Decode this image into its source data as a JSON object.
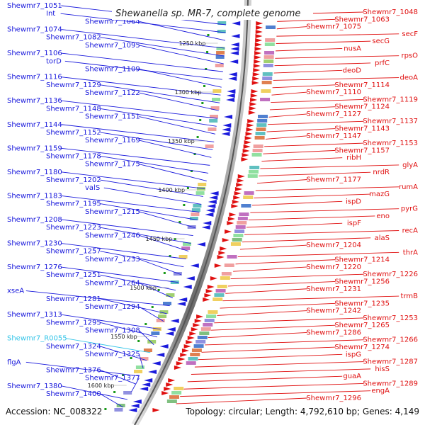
{
  "title": "Shewanella sp. MR-7, complete genome",
  "footer": {
    "accession": "Accession: NC_008322",
    "summary": "Topology: circular; Length: 4,792,610 bp; Genes: 4,149"
  },
  "colors": {
    "left_genes": "#1a1adc",
    "right_genes": "#e01010",
    "rna_gene": "#33c4e8",
    "kbp_marker": "#1a9a1a"
  },
  "kbp_markers": [
    "1250 kbp",
    "1300 kbp",
    "1350 kbp",
    "1400 kbp",
    "1450 kbp",
    "1500 kbp",
    "1550 kbp",
    "1600 kbp"
  ],
  "left_labels": [
    "Shewmr7_1051",
    "Int",
    "Shewmr7_1064",
    "Shewmr7_1074",
    "Shewmr7_1082",
    "Shewmr7_1095",
    "Shewmr7_1106",
    "torD",
    "Shewmr7_1109",
    "Shewmr7_1116",
    "Shewmr7_1129",
    "Shewmr7_1122",
    "Shewmr7_1136",
    "Shewmr7_1148",
    "Shewmr7_1151",
    "Shewmr7_1144",
    "Shewmr7_1152",
    "Shewmr7_1169",
    "Shewmr7_1159",
    "Shewmr7_1178",
    "Shewmr7_1175",
    "Shewmr7_1180",
    "Shewmr7_1202",
    "valS",
    "Shewmr7_1183",
    "Shewmr7_1195",
    "Shewmr7_1215",
    "Shewmr7_1208",
    "Shewmr7_1223",
    "Shewmr7_1246",
    "Shewmr7_1230",
    "Shewmr7_1257",
    "Shewmr7_1233",
    "Shewmr7_1276",
    "Shewmr7_1251",
    "Shewmr7_1264",
    "xseA",
    "Shewmr7_1281",
    "Shewmr7_1294",
    "Shewmr7_1313",
    "Shewmr7_1295",
    "Shewmr7_1308",
    "Shewmr7_R0055",
    "Shewmr7_1324",
    "Shewmr7_1325",
    "flgA",
    "Shewmr7_1376",
    "Shewmr7_1377",
    "Shewmr7_1380",
    "Shewmr7_1400"
  ],
  "right_labels": [
    "Shewmr7_1048",
    "Shewmr7_1063",
    "Shewmr7_1075",
    "secF",
    "secG",
    "nusA",
    "rpsO",
    "prfC",
    "deoD",
    "deoA",
    "Shewmr7_1114",
    "Shewmr7_1110",
    "Shewmr7_1119",
    "Shewmr7_1124",
    "Shewmr7_1127",
    "Shewmr7_1137",
    "Shewmr7_1143",
    "Shewmr7_1147",
    "Shewmr7_1153",
    "Shewmr7_1157",
    "ribH",
    "glyA",
    "nrdR",
    "Shewmr7_1177",
    "rumA",
    "mazG",
    "ispD",
    "pyrG",
    "eno",
    "ispF",
    "recA",
    "alaS",
    "Shewmr7_1204",
    "thrA",
    "Shewmr7_1214",
    "Shewmr7_1220",
    "Shewmr7_1226",
    "Shewmr7_1256",
    "Shewmr7_1231",
    "trmB",
    "Shewmr7_1235",
    "Shewmr7_1242",
    "Shewmr7_1253",
    "Shewmr7_1265",
    "Shewmr7_1286",
    "Shewmr7_1266",
    "Shewmr7_1274",
    "ispG",
    "Shewmr7_1287",
    "hisS",
    "guaA",
    "Shewmr7_1289",
    "engA",
    "Shewmr7_1296"
  ]
}
